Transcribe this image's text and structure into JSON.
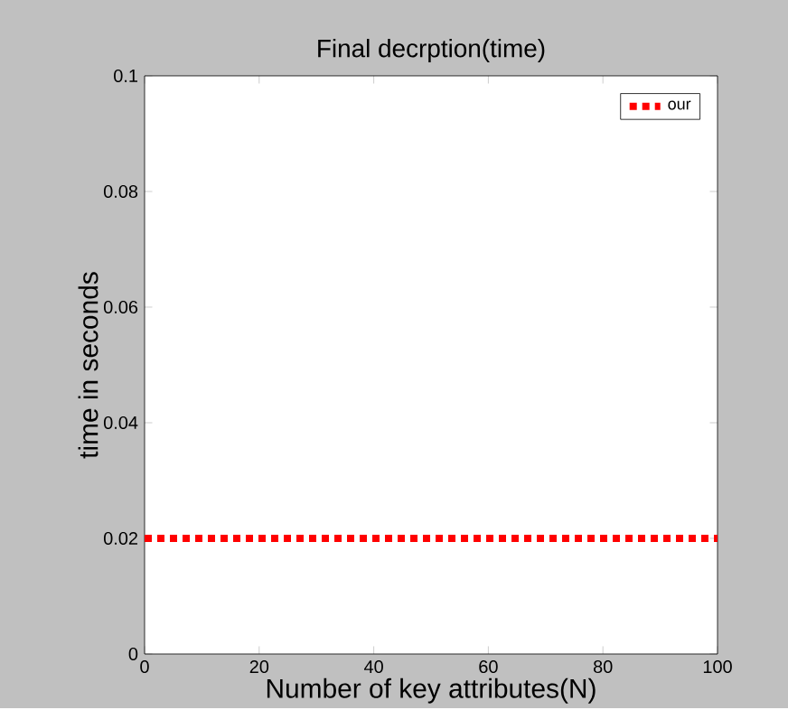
{
  "chart_data": {
    "type": "line",
    "title": "Final decrption(time)",
    "xlabel": "Number  of key attributes(N)",
    "ylabel": "time in seconds",
    "x": [
      0,
      100
    ],
    "series": [
      {
        "name": "our",
        "color": "#ff0000",
        "values": [
          0.02,
          0.02
        ]
      }
    ],
    "xlim": [
      0,
      100
    ],
    "xticks": [
      0,
      20,
      40,
      60,
      80,
      100
    ],
    "ylim": [
      0,
      0.1
    ],
    "yticks": [
      0,
      0.02,
      0.04,
      0.06,
      0.08,
      0.1
    ],
    "legend": "top right",
    "line_style": "dotted",
    "marker": "none",
    "grid": false
  }
}
